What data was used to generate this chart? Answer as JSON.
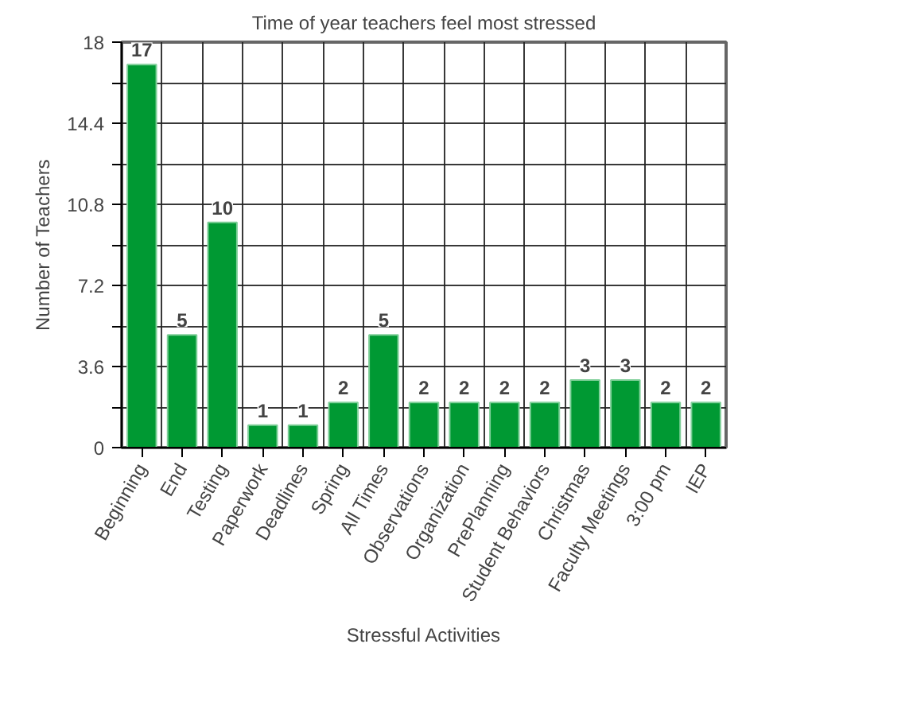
{
  "chart_data": {
    "type": "bar",
    "title": "Time of year teachers feel most stressed",
    "xlabel": "Stressful Activities",
    "ylabel": "Number of Teachers",
    "categories": [
      "Beginning",
      "End",
      "Testing",
      "Paperwork",
      "Deadlines",
      "Spring",
      "All Times",
      "Observations",
      "Organization",
      "PrePlanning",
      "Student Behaviors",
      "Christmas",
      "Faculty Meetings",
      "3:00 pm",
      "IEP"
    ],
    "values": [
      17,
      5,
      10,
      1,
      1,
      2,
      5,
      2,
      2,
      2,
      2,
      3,
      3,
      2,
      2
    ],
    "color": "#009933",
    "ylim": [
      0,
      18
    ],
    "yticks": [
      0,
      {
        "value": 1.8,
        "label": null
      },
      3.6,
      {
        "value": 5.4,
        "label": null
      },
      7.2,
      {
        "value": 9,
        "label": null
      },
      10.8,
      {
        "value": 12.6,
        "label": null
      },
      14.4,
      {
        "value": 16.2,
        "label": null
      },
      18
    ],
    "grid": true,
    "data_labels": true
  }
}
